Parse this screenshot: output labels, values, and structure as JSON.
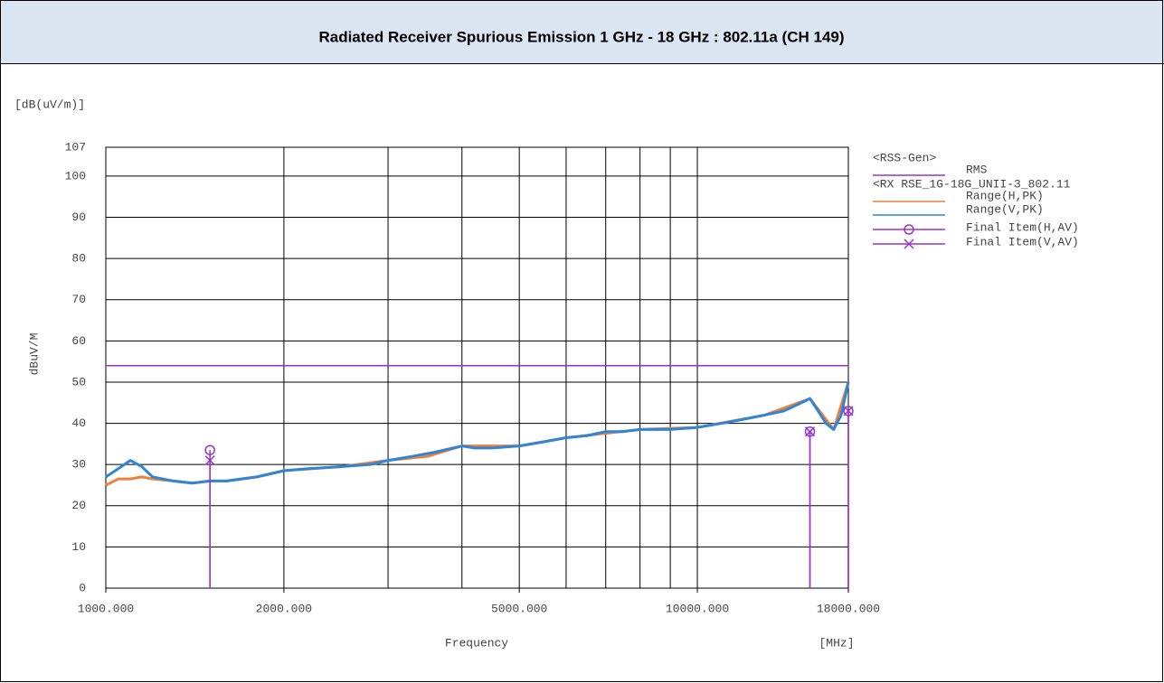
{
  "chart_data": {
    "type": "line",
    "title": "Radiated Receiver Spurious Emission 1 GHz - 18 GHz : 802.11a (CH 149)",
    "y_unit": "[dB(uV/m)]",
    "ylabel": "dBuV/M",
    "xlabel": "Frequency",
    "x_unit": "[MHz]",
    "xscale": "log",
    "xlim": [
      1000,
      18000
    ],
    "xticks": [
      {
        "value": 1000,
        "label": "1000.000"
      },
      {
        "value": 2000,
        "label": "2000.000"
      },
      {
        "value": 5000,
        "label": "5000.000"
      },
      {
        "value": 10000,
        "label": "10000.000"
      },
      {
        "value": 18000,
        "label": "18000.000"
      }
    ],
    "xgrid": [
      1000,
      2000,
      3000,
      4000,
      5000,
      6000,
      7000,
      8000,
      9000,
      10000,
      18000
    ],
    "ylim": [
      0,
      107
    ],
    "yticks": [
      0,
      10,
      20,
      30,
      40,
      50,
      60,
      70,
      80,
      90,
      100,
      107
    ],
    "grid": true,
    "legend_groups": [
      "<RSS-Gen>",
      "<RX RSE_1G-18G_UNII-3_802.11"
    ],
    "limit_lines": [
      {
        "name": "RMS",
        "value": 54,
        "color": "#9933cc"
      }
    ],
    "series": [
      {
        "name": "Range(H,PK)",
        "color": "#f07f3c",
        "x": [
          1000,
          1050,
          1100,
          1150,
          1200,
          1300,
          1400,
          1500,
          1600,
          1800,
          2000,
          2500,
          3000,
          3500,
          4000,
          5000,
          6000,
          8000,
          10000,
          13000,
          15500,
          17000,
          18000
        ],
        "values": [
          25,
          26.5,
          26.5,
          27,
          26.5,
          26,
          25.5,
          26,
          26,
          27,
          28.5,
          29.5,
          31,
          32,
          34.5,
          34.5,
          36.5,
          38.5,
          39,
          42,
          46,
          38.5,
          50
        ]
      },
      {
        "name": "Range(V,PK)",
        "color": "#2f86d8",
        "x": [
          1000,
          1050,
          1100,
          1150,
          1200,
          1300,
          1400,
          1500,
          1600,
          1800,
          2000,
          2200,
          2500,
          2800,
          3000,
          3300,
          3600,
          4000,
          4200,
          4500,
          5000,
          5500,
          6000,
          6500,
          7000,
          7500,
          8000,
          9000,
          10000,
          11000,
          12000,
          13000,
          14000,
          15000,
          15500,
          16000,
          16500,
          17000,
          17500,
          18000
        ],
        "values": [
          27,
          29,
          31,
          29.5,
          27,
          26,
          25.5,
          26,
          26,
          27,
          28.5,
          29,
          29.5,
          30,
          31,
          32,
          33,
          34.5,
          34,
          34,
          34.5,
          35.5,
          36.5,
          37,
          38,
          38,
          38.5,
          38.5,
          39,
          40,
          41,
          42,
          43,
          45,
          46,
          43,
          40,
          38.5,
          42,
          50
        ]
      }
    ],
    "final_items": [
      {
        "name": "Final Item(H,AV)",
        "color": "#9933cc",
        "marker": "circle",
        "x": [
          1500,
          15500,
          18000
        ],
        "values": [
          33.5,
          38,
          43
        ]
      },
      {
        "name": "Final Item(V,AV)",
        "color": "#9933cc",
        "marker": "x",
        "x": [
          1500,
          15500,
          18000
        ],
        "values": [
          31,
          38,
          43
        ]
      }
    ]
  }
}
